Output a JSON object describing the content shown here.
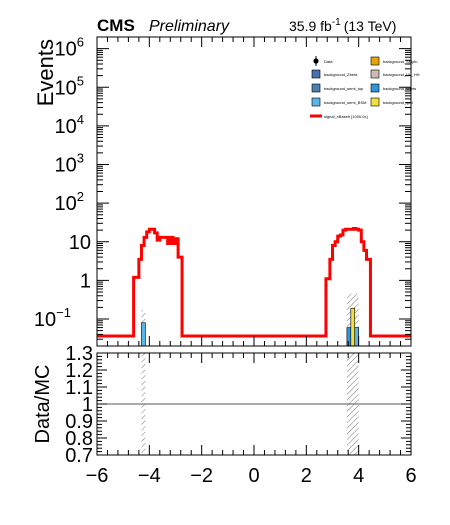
{
  "header": {
    "experiment": "CMS",
    "status": "Preliminary",
    "lumi_value": "35.9 fb",
    "lumi_exp": "-1",
    "energy": "(13 TeV)"
  },
  "chart_data": [
    {
      "type": "histogram",
      "panel": "main",
      "ylabel": "Events",
      "yscale": "log",
      "xlim": [
        -6,
        6
      ],
      "ylim": [
        0.02,
        2000000
      ],
      "yticks": [
        {
          "v": 0.1,
          "b": "10",
          "e": "−1"
        },
        {
          "v": 1,
          "b": "1",
          "e": ""
        },
        {
          "v": 10,
          "b": "10",
          "e": ""
        },
        {
          "v": 100,
          "b": "10",
          "e": "2"
        },
        {
          "v": 1000,
          "b": "10",
          "e": "3"
        },
        {
          "v": 10000,
          "b": "10",
          "e": "4"
        },
        {
          "v": 100000,
          "b": "10",
          "e": "5"
        },
        {
          "v": 1000000,
          "b": "10",
          "e": "6"
        }
      ],
      "legend": {
        "placement": "top-right",
        "entries": [
          {
            "label": "Data",
            "style": "marker",
            "color": "#000000"
          },
          {
            "label": "background_SMplu",
            "style": "box",
            "color": "#e8a400"
          },
          {
            "label": "background_Zbeta",
            "style": "box",
            "color": "#4a6fb0"
          },
          {
            "label": "background_VV_HH",
            "style": "box",
            "color": "#ccbcb4"
          },
          {
            "label": "background_semi_top",
            "style": "box",
            "color": "#4d7fa8"
          },
          {
            "label": "background_Wjets",
            "style": "box",
            "color": "#2f96d8"
          },
          {
            "label": "background_semi_BSM",
            "style": "box",
            "color": "#5ab5e8"
          },
          {
            "label": "background_qcd",
            "style": "box",
            "color": "#f0e040"
          },
          {
            "label": "signal_xBaseh [1000.0x]",
            "style": "line",
            "color": "#ff0000"
          }
        ]
      },
      "signal": {
        "color": "#ff0000",
        "bins": [
          {
            "x0": -4.6,
            "x1": -4.4,
            "y": 1.2
          },
          {
            "x0": -4.4,
            "x1": -4.3,
            "y": 3.5
          },
          {
            "x0": -4.3,
            "x1": -4.2,
            "y": 8
          },
          {
            "x0": -4.2,
            "x1": -4.1,
            "y": 13
          },
          {
            "x0": -4.1,
            "x1": -4.0,
            "y": 18
          },
          {
            "x0": -4.0,
            "x1": -3.9,
            "y": 21
          },
          {
            "x0": -3.9,
            "x1": -3.8,
            "y": 21
          },
          {
            "x0": -3.8,
            "x1": -3.7,
            "y": 17
          },
          {
            "x0": -3.7,
            "x1": -3.6,
            "y": 11
          },
          {
            "x0": -3.6,
            "x1": -3.5,
            "y": 13
          },
          {
            "x0": -3.5,
            "x1": -3.4,
            "y": 13
          },
          {
            "x0": -3.4,
            "x1": -3.3,
            "y": 13
          },
          {
            "x0": -3.3,
            "x1": -3.2,
            "y": 9
          },
          {
            "x0": -3.2,
            "x1": -3.1,
            "y": 13
          },
          {
            "x0": -3.1,
            "x1": -3.0,
            "y": 9
          },
          {
            "x0": -3.0,
            "x1": -2.9,
            "y": 12
          },
          {
            "x0": -2.9,
            "x1": -2.75,
            "y": 4
          },
          {
            "x0": 2.75,
            "x1": 2.9,
            "y": 1.1
          },
          {
            "x0": 2.9,
            "x1": 3.0,
            "y": 3.5
          },
          {
            "x0": 3.0,
            "x1": 3.1,
            "y": 8
          },
          {
            "x0": 3.1,
            "x1": 3.2,
            "y": 10
          },
          {
            "x0": 3.2,
            "x1": 3.3,
            "y": 14
          },
          {
            "x0": 3.3,
            "x1": 3.4,
            "y": 15
          },
          {
            "x0": 3.4,
            "x1": 3.5,
            "y": 20
          },
          {
            "x0": 3.5,
            "x1": 3.6,
            "y": 21
          },
          {
            "x0": 3.6,
            "x1": 3.7,
            "y": 21
          },
          {
            "x0": 3.7,
            "x1": 3.8,
            "y": 21
          },
          {
            "x0": 3.8,
            "x1": 3.9,
            "y": 22
          },
          {
            "x0": 3.9,
            "x1": 4.0,
            "y": 21
          },
          {
            "x0": 4.0,
            "x1": 4.1,
            "y": 20
          },
          {
            "x0": 4.1,
            "x1": 4.2,
            "y": 10
          },
          {
            "x0": 4.2,
            "x1": 4.3,
            "y": 6
          },
          {
            "x0": 4.3,
            "x1": 4.45,
            "y": 3.5
          }
        ]
      },
      "background_bars": [
        {
          "x0": -4.3,
          "x1": -4.15,
          "y": 0.08,
          "color": "#5ab5e8"
        },
        {
          "x0": 3.55,
          "x1": 3.7,
          "y": 0.06,
          "color": "#2f96d8"
        },
        {
          "x0": 3.7,
          "x1": 3.85,
          "y": 0.19,
          "color": "#f0e040"
        },
        {
          "x0": 3.85,
          "x1": 4.0,
          "y": 0.06,
          "color": "#5ab5e8"
        }
      ],
      "uncertainty_bands": [
        {
          "x0": -4.3,
          "x1": -4.15,
          "ylo": 0.025,
          "yhi": 0.17
        },
        {
          "x0": 3.55,
          "x1": 4.0,
          "ylo": 0.025,
          "yhi": 0.45
        }
      ]
    },
    {
      "type": "ratio",
      "panel": "ratio",
      "xlabel": "",
      "ylabel": "Data/MC",
      "xlim": [
        -6,
        6
      ],
      "ylim": [
        0.7,
        1.3
      ],
      "xticks": [
        {
          "v": -6,
          "label": "−6"
        },
        {
          "v": -4,
          "label": "−4"
        },
        {
          "v": -2,
          "label": "−2"
        },
        {
          "v": 0,
          "label": "0"
        },
        {
          "v": 2,
          "label": "2"
        },
        {
          "v": 4,
          "label": "4"
        },
        {
          "v": 6,
          "label": "6"
        }
      ],
      "yticks": [
        {
          "v": 0.7,
          "label": "0.7"
        },
        {
          "v": 0.8,
          "label": "0.8"
        },
        {
          "v": 0.9,
          "label": "0.9"
        },
        {
          "v": 1.0,
          "label": "1"
        },
        {
          "v": 1.1,
          "label": "1.1"
        },
        {
          "v": 1.2,
          "label": "1.2"
        },
        {
          "v": 1.3,
          "label": "1.3"
        }
      ],
      "reference_line": 1.0,
      "uncertainty_bands": [
        {
          "x0": -4.3,
          "x1": -4.15
        },
        {
          "x0": 3.55,
          "x1": 4.0
        }
      ]
    }
  ]
}
